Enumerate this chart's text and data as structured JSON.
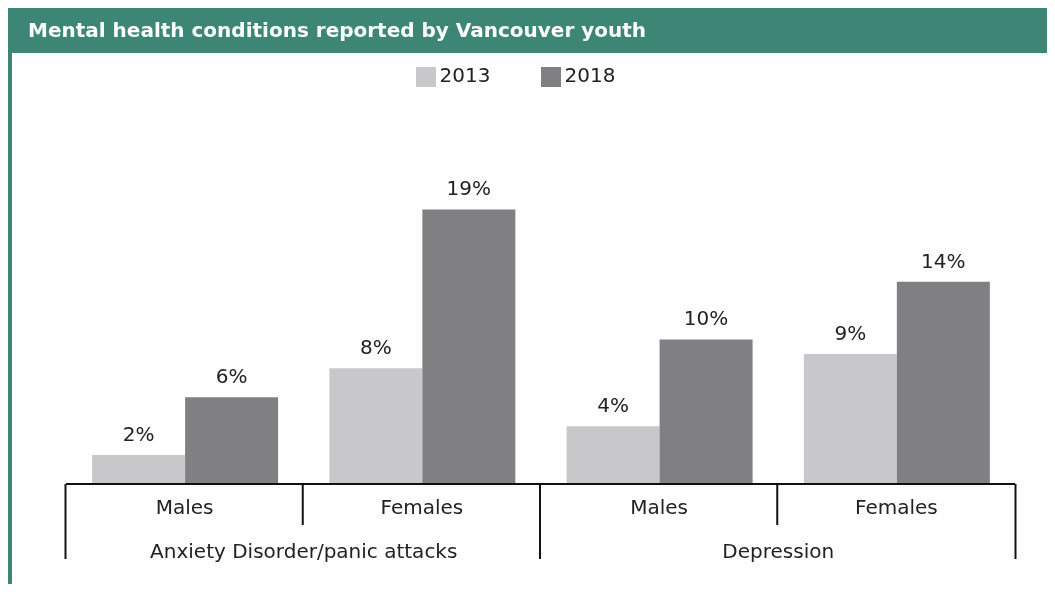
{
  "chart_data": {
    "type": "bar",
    "title": "Mental health conditions reported by Vancouver youth",
    "categories": [
      "Males",
      "Females",
      "Males",
      "Females"
    ],
    "series": [
      {
        "name": "2013",
        "color": "#c8c8ca",
        "values": [
          2,
          8,
          4,
          9
        ],
        "value_labels": [
          "2%",
          "8%",
          "4%",
          "9%"
        ]
      },
      {
        "name": "2018",
        "color": "#808083",
        "values": [
          6,
          19,
          10,
          14
        ],
        "value_labels": [
          "6%",
          "19%",
          "10%",
          "14%"
        ]
      }
    ],
    "annotations": [
      "Anxiety Disorder/panic attacks",
      "Depression"
    ],
    "legend": "top",
    "grid": false
  }
}
